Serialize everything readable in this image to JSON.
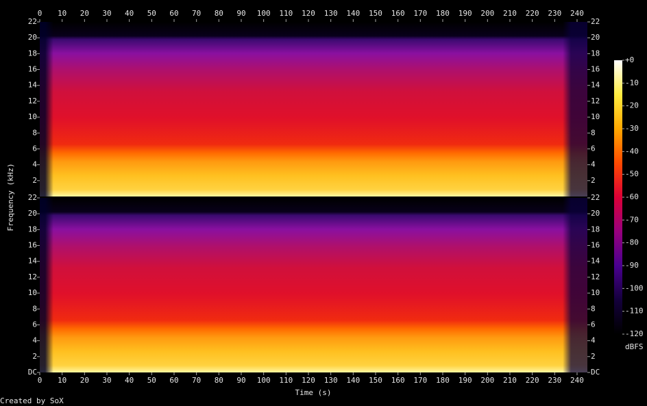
{
  "chart_data": {
    "type": "spectrogram",
    "x_label": "Time (s)",
    "y_label": "Frequency (kHz)",
    "credit": "Created by SoX",
    "xlim": [
      0,
      244.6
    ],
    "xticks": [
      0,
      10,
      20,
      30,
      40,
      50,
      60,
      70,
      80,
      90,
      100,
      110,
      120,
      130,
      140,
      150,
      160,
      170,
      180,
      190,
      200,
      210,
      220,
      230,
      240
    ],
    "channels": [
      {
        "ylim": [
          0,
          22
        ],
        "yticks": [
          2,
          4,
          6,
          8,
          10,
          12,
          14,
          16,
          18,
          20,
          22
        ]
      },
      {
        "ylim": [
          0,
          22
        ],
        "yticks": [
          {
            "value": 0,
            "label": "DC"
          },
          2,
          4,
          6,
          8,
          10,
          12,
          14,
          16,
          18,
          20,
          22
        ]
      }
    ],
    "colorbar": {
      "label": "dBFS",
      "lim": [
        -120,
        0
      ],
      "ticks": [
        {
          "value": 0,
          "label": "+0"
        },
        -10,
        -20,
        -30,
        -40,
        -50,
        -60,
        -70,
        -80,
        -90,
        -100,
        -110,
        -120
      ],
      "colors": [
        "#000000",
        "#14003c",
        "#4a0090",
        "#98007e",
        "#dc0036",
        "#ff4a00",
        "#ffa800",
        "#ffec40",
        "#ffffff"
      ]
    }
  }
}
